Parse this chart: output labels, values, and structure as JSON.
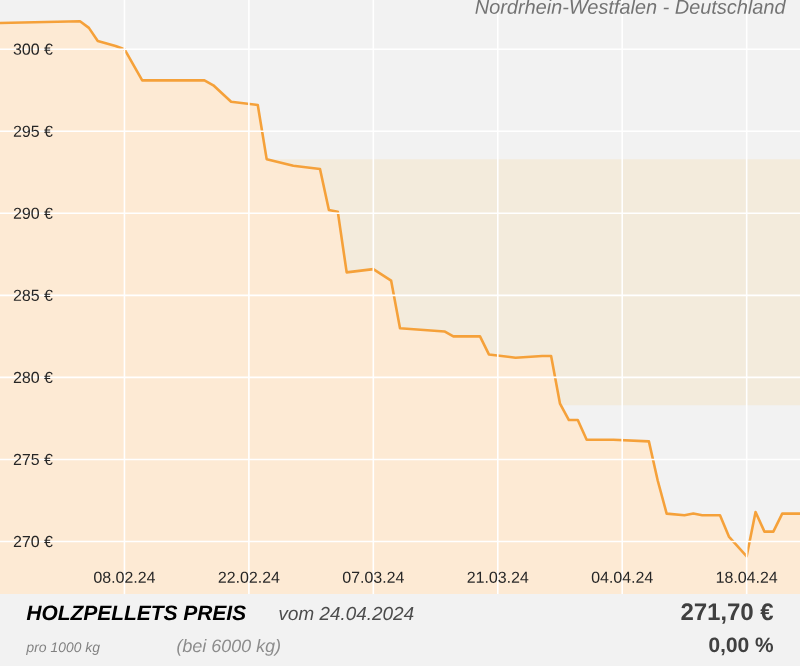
{
  "chart_data": {
    "type": "area",
    "title": "Nordrhein-Westfalen - Deutschland",
    "annotations": [
      "HOLZPELLETS PREIS",
      "vom 24.04.2024",
      "pro 1000 kg",
      "(bei 6000 kg)",
      "271,70 €",
      "0,00 %"
    ],
    "x": [
      "2024-01-25",
      "2024-02-03",
      "2024-02-04",
      "2024-02-05",
      "2024-02-07",
      "2024-02-08",
      "2024-02-10",
      "2024-02-17",
      "2024-02-18",
      "2024-02-20",
      "2024-02-23",
      "2024-02-24",
      "2024-02-27",
      "2024-03-01",
      "2024-03-02",
      "2024-03-03",
      "2024-03-04",
      "2024-03-07",
      "2024-03-09",
      "2024-03-10",
      "2024-03-15",
      "2024-03-16",
      "2024-03-19",
      "2024-03-20",
      "2024-03-23",
      "2024-03-26",
      "2024-03-27",
      "2024-03-28",
      "2024-03-29",
      "2024-03-30",
      "2024-03-31",
      "2024-04-03",
      "2024-04-07",
      "2024-04-08",
      "2024-04-09",
      "2024-04-11",
      "2024-04-12",
      "2024-04-13",
      "2024-04-15",
      "2024-04-16",
      "2024-04-18",
      "2024-04-19",
      "2024-04-20",
      "2024-04-21",
      "2024-04-22",
      "2024-04-24"
    ],
    "series": [
      {
        "color": "#f5a13a",
        "values": [
          301.6,
          301.7,
          301.3,
          300.5,
          300.2,
          300.0,
          298.1,
          298.1,
          297.8,
          296.8,
          296.6,
          293.3,
          292.9,
          292.7,
          290.2,
          290.1,
          286.4,
          286.6,
          285.9,
          283.0,
          282.8,
          282.5,
          282.5,
          281.4,
          281.2,
          281.3,
          281.3,
          278.4,
          277.4,
          277.4,
          276.2,
          276.2,
          276.1,
          273.7,
          271.7,
          271.6,
          271.7,
          271.6,
          271.6,
          270.3,
          269.1,
          271.8,
          270.6,
          270.6,
          271.7,
          271.7
        ]
      }
    ],
    "xlim": [
      "2024-01-25",
      "2024-04-24"
    ],
    "ylim": [
      266.8,
      303.0
    ],
    "xticks": [
      {
        "value": "2024-02-08",
        "label": "08.02.24"
      },
      {
        "value": "2024-02-22",
        "label": "22.02.24"
      },
      {
        "value": "2024-03-07",
        "label": "07.03.24"
      },
      {
        "value": "2024-03-21",
        "label": "21.03.24"
      },
      {
        "value": "2024-04-04",
        "label": "04.04.24"
      },
      {
        "value": "2024-04-18",
        "label": "18.04.24"
      }
    ],
    "yticks": [
      {
        "value": 270,
        "label": "270 €"
      },
      {
        "value": 275,
        "label": "275 €"
      },
      {
        "value": 280,
        "label": "280 €"
      },
      {
        "value": 285,
        "label": "285 €"
      },
      {
        "value": 290,
        "label": "290 €"
      },
      {
        "value": 295,
        "label": "295 €"
      },
      {
        "value": 300,
        "label": "300 €"
      }
    ],
    "grid": true,
    "bands": [
      {
        "axis": "y",
        "from": 278.3,
        "to": 293.3,
        "color": "#f3ebdc"
      }
    ]
  }
}
